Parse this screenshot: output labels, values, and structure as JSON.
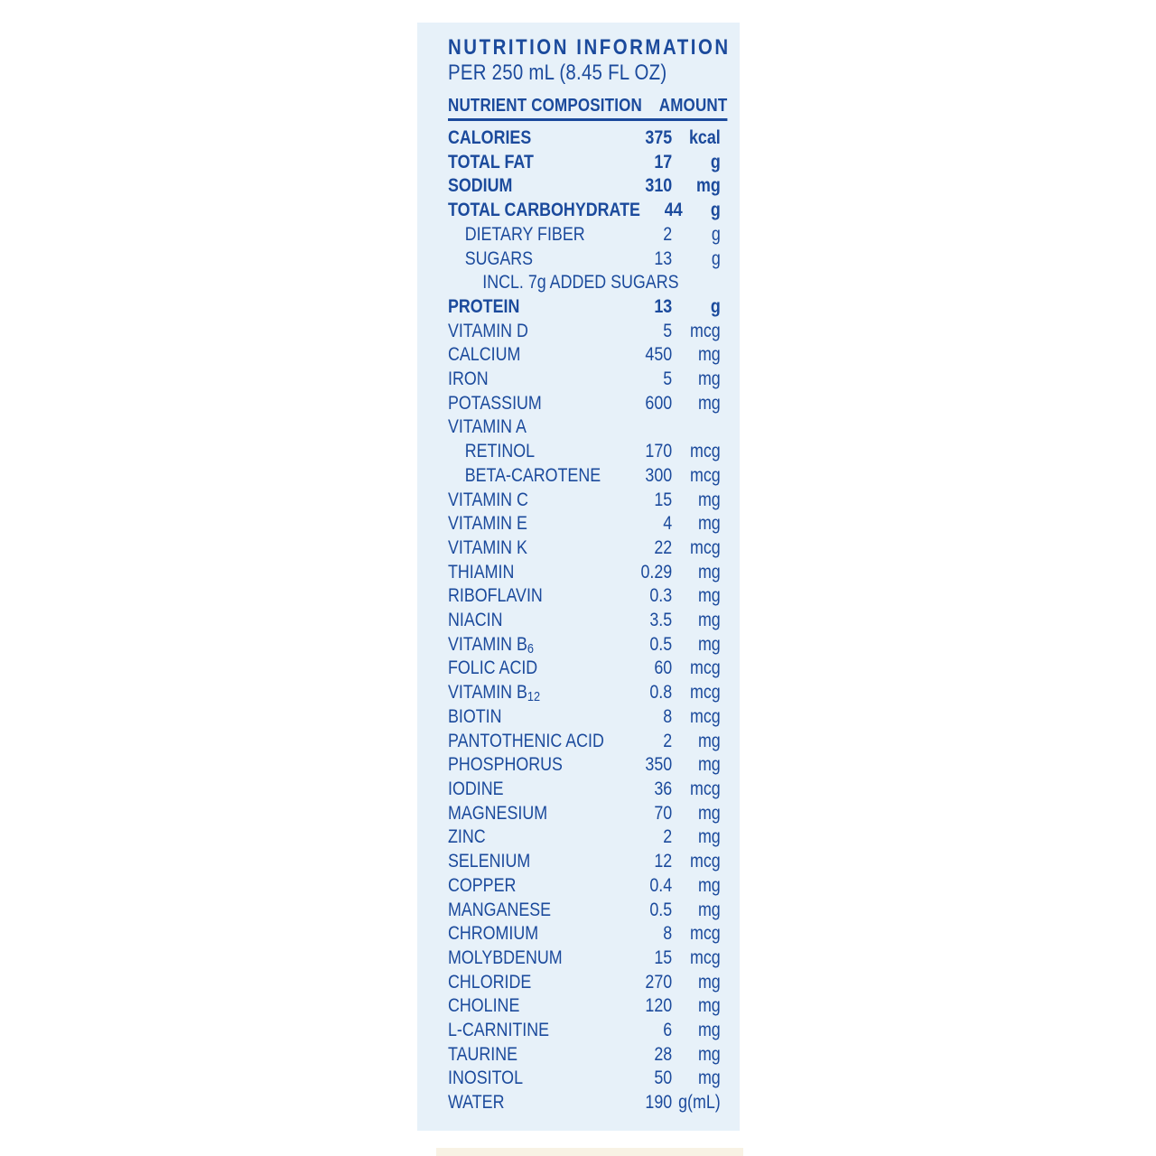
{
  "panel": {
    "title": "NUTRITION INFORMATION",
    "subtitle": "PER 250 mL (8.45 FL OZ)",
    "columns": {
      "nutrient": "NUTRIENT COMPOSITION",
      "amount": "AMOUNT"
    },
    "colors": {
      "text_blue": "#1b4a9c",
      "panel_bg": "#e7f1f9"
    },
    "rows": [
      {
        "label": "CALORIES",
        "value": "375",
        "unit": "kcal",
        "bold": true,
        "indent": 0
      },
      {
        "label": "TOTAL FAT",
        "value": "17",
        "unit": "g",
        "bold": true,
        "indent": 0
      },
      {
        "label": "SODIUM",
        "value": "310",
        "unit": "mg",
        "bold": true,
        "indent": 0
      },
      {
        "label": "TOTAL CARBOHYDRATE",
        "value": "44",
        "unit": "g",
        "bold": true,
        "indent": 0
      },
      {
        "label": "DIETARY FIBER",
        "value": "2",
        "unit": "g",
        "bold": false,
        "indent": 1
      },
      {
        "label": "SUGARS",
        "value": "13",
        "unit": "g",
        "bold": false,
        "indent": 1
      },
      {
        "label": "INCL. 7g ADDED SUGARS",
        "value": "",
        "unit": "",
        "bold": false,
        "indent": 2
      },
      {
        "label": "PROTEIN",
        "value": "13",
        "unit": "g",
        "bold": true,
        "indent": 0
      },
      {
        "label": "VITAMIN D",
        "value": "5",
        "unit": "mcg",
        "bold": false,
        "indent": 0
      },
      {
        "label": "CALCIUM",
        "value": "450",
        "unit": "mg",
        "bold": false,
        "indent": 0
      },
      {
        "label": "IRON",
        "value": "5",
        "unit": "mg",
        "bold": false,
        "indent": 0
      },
      {
        "label": "POTASSIUM",
        "value": "600",
        "unit": "mg",
        "bold": false,
        "indent": 0
      },
      {
        "label": "VITAMIN A",
        "value": "",
        "unit": "",
        "bold": false,
        "indent": 0
      },
      {
        "label": "RETINOL",
        "value": "170",
        "unit": "mcg",
        "bold": false,
        "indent": 1
      },
      {
        "label": "BETA-CAROTENE",
        "value": "300",
        "unit": "mcg",
        "bold": false,
        "indent": 1
      },
      {
        "label": "VITAMIN C",
        "value": "15",
        "unit": "mg",
        "bold": false,
        "indent": 0
      },
      {
        "label": "VITAMIN E",
        "value": "4",
        "unit": "mg",
        "bold": false,
        "indent": 0
      },
      {
        "label": "VITAMIN K",
        "value": "22",
        "unit": "mcg",
        "bold": false,
        "indent": 0
      },
      {
        "label": "THIAMIN",
        "value": "0.29",
        "unit": "mg",
        "bold": false,
        "indent": 0
      },
      {
        "label": "RIBOFLAVIN",
        "value": "0.3",
        "unit": "mg",
        "bold": false,
        "indent": 0
      },
      {
        "label": "NIACIN",
        "value": "3.5",
        "unit": "mg",
        "bold": false,
        "indent": 0
      },
      {
        "label": "VITAMIN B",
        "label_sub": "6",
        "value": "0.5",
        "unit": "mg",
        "bold": false,
        "indent": 0
      },
      {
        "label": "FOLIC ACID",
        "value": "60",
        "unit": "mcg",
        "bold": false,
        "indent": 0
      },
      {
        "label": "VITAMIN B",
        "label_sub": "12",
        "value": "0.8",
        "unit": "mcg",
        "bold": false,
        "indent": 0
      },
      {
        "label": "BIOTIN",
        "value": "8",
        "unit": "mcg",
        "bold": false,
        "indent": 0
      },
      {
        "label": "PANTOTHENIC ACID",
        "value": "2",
        "unit": "mg",
        "bold": false,
        "indent": 0
      },
      {
        "label": "PHOSPHORUS",
        "value": "350",
        "unit": "mg",
        "bold": false,
        "indent": 0
      },
      {
        "label": "IODINE",
        "value": "36",
        "unit": "mcg",
        "bold": false,
        "indent": 0
      },
      {
        "label": "MAGNESIUM",
        "value": "70",
        "unit": "mg",
        "bold": false,
        "indent": 0
      },
      {
        "label": "ZINC",
        "value": "2",
        "unit": "mg",
        "bold": false,
        "indent": 0
      },
      {
        "label": "SELENIUM",
        "value": "12",
        "unit": "mcg",
        "bold": false,
        "indent": 0
      },
      {
        "label": "COPPER",
        "value": "0.4",
        "unit": "mg",
        "bold": false,
        "indent": 0
      },
      {
        "label": "MANGANESE",
        "value": "0.5",
        "unit": "mg",
        "bold": false,
        "indent": 0
      },
      {
        "label": "CHROMIUM",
        "value": "8",
        "unit": "mcg",
        "bold": false,
        "indent": 0
      },
      {
        "label": "MOLYBDENUM",
        "value": "15",
        "unit": "mcg",
        "bold": false,
        "indent": 0
      },
      {
        "label": "CHLORIDE",
        "value": "270",
        "unit": "mg",
        "bold": false,
        "indent": 0
      },
      {
        "label": "CHOLINE",
        "value": "120",
        "unit": "mg",
        "bold": false,
        "indent": 0
      },
      {
        "label": "L-CARNITINE",
        "value": "6",
        "unit": "mg",
        "bold": false,
        "indent": 0
      },
      {
        "label": "TAURINE",
        "value": "28",
        "unit": "mg",
        "bold": false,
        "indent": 0
      },
      {
        "label": "INOSITOL",
        "value": "50",
        "unit": "mg",
        "bold": false,
        "indent": 0
      },
      {
        "label": "WATER",
        "value": "190",
        "unit": "g(mL)",
        "bold": false,
        "indent": 0
      }
    ]
  }
}
